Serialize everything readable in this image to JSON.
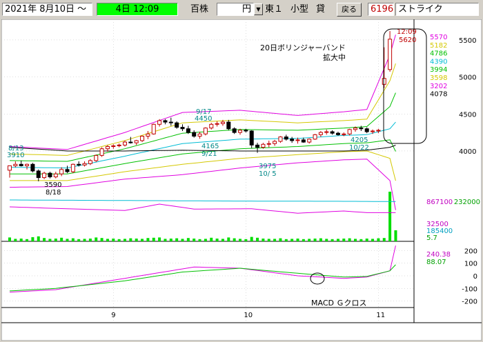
{
  "toolbar": {
    "date_field": "2021年  8月10日 ～",
    "period_field": "4日 12:09",
    "unit_label": "百株",
    "currency_field": "円",
    "market_label": "東１",
    "size_label": "小型",
    "margin_label": "貸",
    "back_button": "戻る",
    "code_field": "6196",
    "name_field": "ストライク"
  },
  "chart_data": {
    "type": "candlestick",
    "title": "",
    "price_axis": {
      "ticks": [
        5500,
        5000,
        4500,
        4000
      ],
      "min": 3450,
      "max": 5760
    },
    "volume_axis": {
      "max": 232000,
      "max_label": "232000"
    },
    "macd_axis": {
      "ticks": [
        200,
        100,
        0,
        -100,
        -200
      ],
      "min": -230,
      "max": 230
    },
    "date_ticks": [
      "9",
      "10",
      "11"
    ],
    "candles": [
      {
        "o": 3740,
        "h": 3800,
        "l": 3640,
        "c": 3800
      },
      {
        "o": 3800,
        "h": 3860,
        "l": 3780,
        "c": 3820
      },
      {
        "o": 3820,
        "h": 3870,
        "l": 3790,
        "c": 3800
      },
      {
        "o": 3800,
        "h": 3830,
        "l": 3750,
        "c": 3820
      },
      {
        "o": 3820,
        "h": 3840,
        "l": 3710,
        "c": 3730
      },
      {
        "o": 3730,
        "h": 3750,
        "l": 3590,
        "c": 3640
      },
      {
        "o": 3640,
        "h": 3720,
        "l": 3620,
        "c": 3700
      },
      {
        "o": 3700,
        "h": 3720,
        "l": 3630,
        "c": 3650
      },
      {
        "o": 3650,
        "h": 3720,
        "l": 3630,
        "c": 3690
      },
      {
        "o": 3690,
        "h": 3780,
        "l": 3660,
        "c": 3750
      },
      {
        "o": 3750,
        "h": 3800,
        "l": 3700,
        "c": 3720
      },
      {
        "o": 3720,
        "h": 3830,
        "l": 3700,
        "c": 3820
      },
      {
        "o": 3820,
        "h": 3860,
        "l": 3790,
        "c": 3810
      },
      {
        "o": 3810,
        "h": 3860,
        "l": 3790,
        "c": 3830
      },
      {
        "o": 3830,
        "h": 3890,
        "l": 3810,
        "c": 3870
      },
      {
        "o": 3870,
        "h": 3950,
        "l": 3850,
        "c": 3940
      },
      {
        "o": 3940,
        "h": 4050,
        "l": 3920,
        "c": 4030
      },
      {
        "o": 4030,
        "h": 4080,
        "l": 3990,
        "c": 4060
      },
      {
        "o": 4060,
        "h": 4090,
        "l": 4030,
        "c": 4070
      },
      {
        "o": 4070,
        "h": 4100,
        "l": 4050,
        "c": 4080
      },
      {
        "o": 4080,
        "h": 4140,
        "l": 4060,
        "c": 4120
      },
      {
        "o": 4120,
        "h": 4190,
        "l": 4100,
        "c": 4110
      },
      {
        "o": 4110,
        "h": 4150,
        "l": 4080,
        "c": 4140
      },
      {
        "o": 4140,
        "h": 4210,
        "l": 4120,
        "c": 4200
      },
      {
        "o": 4200,
        "h": 4270,
        "l": 4160,
        "c": 4230
      },
      {
        "o": 4230,
        "h": 4370,
        "l": 4220,
        "c": 4360
      },
      {
        "o": 4360,
        "h": 4430,
        "l": 4330,
        "c": 4410
      },
      {
        "o": 4410,
        "h": 4430,
        "l": 4360,
        "c": 4390
      },
      {
        "o": 4390,
        "h": 4450,
        "l": 4340,
        "c": 4380
      },
      {
        "o": 4380,
        "h": 4400,
        "l": 4300,
        "c": 4320
      },
      {
        "o": 4320,
        "h": 4360,
        "l": 4270,
        "c": 4300
      },
      {
        "o": 4300,
        "h": 4340,
        "l": 4230,
        "c": 4250
      },
      {
        "o": 4250,
        "h": 4280,
        "l": 4180,
        "c": 4200
      },
      {
        "o": 4200,
        "h": 4260,
        "l": 4165,
        "c": 4230
      },
      {
        "o": 4230,
        "h": 4320,
        "l": 4210,
        "c": 4310
      },
      {
        "o": 4310,
        "h": 4380,
        "l": 4290,
        "c": 4360
      },
      {
        "o": 4360,
        "h": 4400,
        "l": 4330,
        "c": 4370
      },
      {
        "o": 4370,
        "h": 4420,
        "l": 4340,
        "c": 4390
      },
      {
        "o": 4390,
        "h": 4420,
        "l": 4280,
        "c": 4300
      },
      {
        "o": 4300,
        "h": 4320,
        "l": 4230,
        "c": 4250
      },
      {
        "o": 4250,
        "h": 4300,
        "l": 4220,
        "c": 4280
      },
      {
        "o": 4280,
        "h": 4300,
        "l": 4250,
        "c": 4270
      },
      {
        "o": 4270,
        "h": 4280,
        "l": 4040,
        "c": 4080
      },
      {
        "o": 4080,
        "h": 4110,
        "l": 3975,
        "c": 4050
      },
      {
        "o": 4050,
        "h": 4110,
        "l": 4030,
        "c": 4090
      },
      {
        "o": 4090,
        "h": 4140,
        "l": 4050,
        "c": 4100
      },
      {
        "o": 4100,
        "h": 4150,
        "l": 4070,
        "c": 4130
      },
      {
        "o": 4130,
        "h": 4200,
        "l": 4110,
        "c": 4190
      },
      {
        "o": 4190,
        "h": 4220,
        "l": 4140,
        "c": 4160
      },
      {
        "o": 4160,
        "h": 4190,
        "l": 4110,
        "c": 4140
      },
      {
        "o": 4140,
        "h": 4180,
        "l": 4100,
        "c": 4150
      },
      {
        "o": 4150,
        "h": 4180,
        "l": 4110,
        "c": 4120
      },
      {
        "o": 4120,
        "h": 4170,
        "l": 4100,
        "c": 4160
      },
      {
        "o": 4160,
        "h": 4230,
        "l": 4150,
        "c": 4220
      },
      {
        "o": 4220,
        "h": 4270,
        "l": 4190,
        "c": 4250
      },
      {
        "o": 4250,
        "h": 4290,
        "l": 4220,
        "c": 4260
      },
      {
        "o": 4260,
        "h": 4280,
        "l": 4220,
        "c": 4240
      },
      {
        "o": 4240,
        "h": 4260,
        "l": 4205,
        "c": 4220
      },
      {
        "o": 4220,
        "h": 4250,
        "l": 4200,
        "c": 4230
      },
      {
        "o": 4230,
        "h": 4300,
        "l": 4210,
        "c": 4290
      },
      {
        "o": 4290,
        "h": 4330,
        "l": 4260,
        "c": 4310
      },
      {
        "o": 4310,
        "h": 4340,
        "l": 4270,
        "c": 4300
      },
      {
        "o": 4300,
        "h": 4320,
        "l": 4240,
        "c": 4260
      },
      {
        "o": 4260,
        "h": 4290,
        "l": 4230,
        "c": 4270
      },
      {
        "o": 4270,
        "h": 4300,
        "l": 4240,
        "c": 4280
      },
      {
        "o": 4900,
        "h": 5400,
        "l": 4850,
        "c": 4980
      },
      {
        "o": 5100,
        "h": 5620,
        "l": 5070,
        "c": 5510
      }
    ],
    "bollinger": {
      "p3": [
        [
          0,
          4060
        ],
        [
          10,
          4020
        ],
        [
          20,
          4250
        ],
        [
          30,
          4520
        ],
        [
          40,
          4550
        ],
        [
          50,
          4480
        ],
        [
          58,
          4530
        ],
        [
          62,
          4560
        ],
        [
          66,
          5300
        ],
        [
          67,
          5570
        ]
      ],
      "p2": [
        [
          0,
          3960
        ],
        [
          10,
          3940
        ],
        [
          20,
          4140
        ],
        [
          30,
          4380
        ],
        [
          40,
          4420
        ],
        [
          50,
          4380
        ],
        [
          58,
          4410
        ],
        [
          62,
          4430
        ],
        [
          66,
          4950
        ],
        [
          67,
          5182
        ]
      ],
      "p1": [
        [
          0,
          3870
        ],
        [
          10,
          3860
        ],
        [
          20,
          4030
        ],
        [
          30,
          4240
        ],
        [
          40,
          4290
        ],
        [
          50,
          4280
        ],
        [
          58,
          4310
        ],
        [
          62,
          4330
        ],
        [
          66,
          4600
        ],
        [
          67,
          4786
        ]
      ],
      "ma": [
        [
          0,
          3780
        ],
        [
          10,
          3770
        ],
        [
          20,
          3930
        ],
        [
          30,
          4100
        ],
        [
          40,
          4160
        ],
        [
          50,
          4170
        ],
        [
          58,
          4210
        ],
        [
          62,
          4220
        ],
        [
          66,
          4300
        ],
        [
          67,
          4390
        ]
      ],
      "m1": [
        [
          0,
          3690
        ],
        [
          10,
          3690
        ],
        [
          20,
          3830
        ],
        [
          30,
          3960
        ],
        [
          40,
          4030
        ],
        [
          50,
          4060
        ],
        [
          58,
          4100
        ],
        [
          62,
          4110
        ],
        [
          66,
          4150
        ],
        [
          67,
          3994
        ]
      ],
      "m2": [
        [
          0,
          3600
        ],
        [
          10,
          3600
        ],
        [
          20,
          3720
        ],
        [
          30,
          3820
        ],
        [
          40,
          3900
        ],
        [
          50,
          3950
        ],
        [
          58,
          3990
        ],
        [
          62,
          4000
        ],
        [
          66,
          3900
        ],
        [
          67,
          3598
        ]
      ],
      "m3": [
        [
          0,
          3510
        ],
        [
          10,
          3520
        ],
        [
          20,
          3620
        ],
        [
          30,
          3680
        ],
        [
          40,
          3770
        ],
        [
          50,
          3840
        ],
        [
          58,
          3880
        ],
        [
          62,
          3890
        ],
        [
          66,
          3600
        ],
        [
          67,
          3202
        ]
      ],
      "long": [
        [
          0,
          4050
        ],
        [
          10,
          4000
        ],
        [
          20,
          4000
        ],
        [
          30,
          4010
        ],
        [
          40,
          4000
        ],
        [
          50,
          4000
        ],
        [
          58,
          4000
        ],
        [
          62,
          4010
        ],
        [
          66,
          4050
        ],
        [
          67,
          4078
        ]
      ]
    },
    "bb_labels": [
      "5570",
      "5182",
      "4786",
      "4390",
      "3994",
      "3598",
      "3202",
      "4078"
    ],
    "volume": [
      14,
      9,
      10,
      8,
      15,
      18,
      12,
      9,
      10,
      13,
      9,
      11,
      8,
      9,
      10,
      14,
      12,
      9,
      10,
      8,
      9,
      11,
      10,
      9,
      12,
      13,
      14,
      9,
      10,
      11,
      9,
      12,
      10,
      8,
      9,
      13,
      10,
      9,
      14,
      11,
      9,
      8,
      16,
      13,
      10,
      9,
      9,
      11,
      8,
      9,
      10,
      8,
      9,
      10,
      11,
      9,
      8,
      9,
      10,
      11,
      9,
      8,
      10,
      9,
      11,
      12,
      180,
      40
    ],
    "volume_ma_fast": [
      [
        0,
        125
      ],
      [
        10,
        118
      ],
      [
        20,
        112
      ],
      [
        26,
        135
      ],
      [
        32,
        117
      ],
      [
        42,
        118
      ],
      [
        50,
        102
      ],
      [
        58,
        110
      ],
      [
        62,
        104
      ],
      [
        67,
        104
      ]
    ],
    "volume_ma_slow": [
      [
        0,
        150
      ],
      [
        20,
        148
      ],
      [
        40,
        146
      ],
      [
        60,
        145
      ],
      [
        67,
        144
      ]
    ],
    "volume_labels": [
      "867100",
      "32500",
      "185400",
      "5.7"
    ],
    "macd": [
      [
        0,
        -130
      ],
      [
        8,
        -110
      ],
      [
        20,
        -20
      ],
      [
        32,
        70
      ],
      [
        40,
        60
      ],
      [
        50,
        0
      ],
      [
        58,
        -20
      ],
      [
        62,
        -10
      ],
      [
        66,
        40
      ],
      [
        67,
        240
      ]
    ],
    "macd_signal": [
      [
        0,
        -120
      ],
      [
        8,
        -100
      ],
      [
        20,
        -40
      ],
      [
        30,
        30
      ],
      [
        40,
        60
      ],
      [
        50,
        20
      ],
      [
        58,
        -10
      ],
      [
        62,
        -5
      ],
      [
        66,
        40
      ],
      [
        67,
        88
      ]
    ],
    "macd_labels": [
      "240.38",
      "88.07"
    ],
    "annotations": {
      "a1": "8/13",
      "a2": "3910",
      "a3": "3590",
      "a4": "8/18",
      "a5": "9/17",
      "a6": "4450",
      "a7": "4165",
      "a8": "9/21",
      "a9": "3975",
      "a10": "10/ 5",
      "a11": "4205",
      "a12": "10/22",
      "a13": "12:09",
      "a14": "5620",
      "bb_note": "20日ボリンジャーバンド",
      "bb_note2": "拡大中",
      "macd_note": "MACD Ｇクロス"
    }
  }
}
